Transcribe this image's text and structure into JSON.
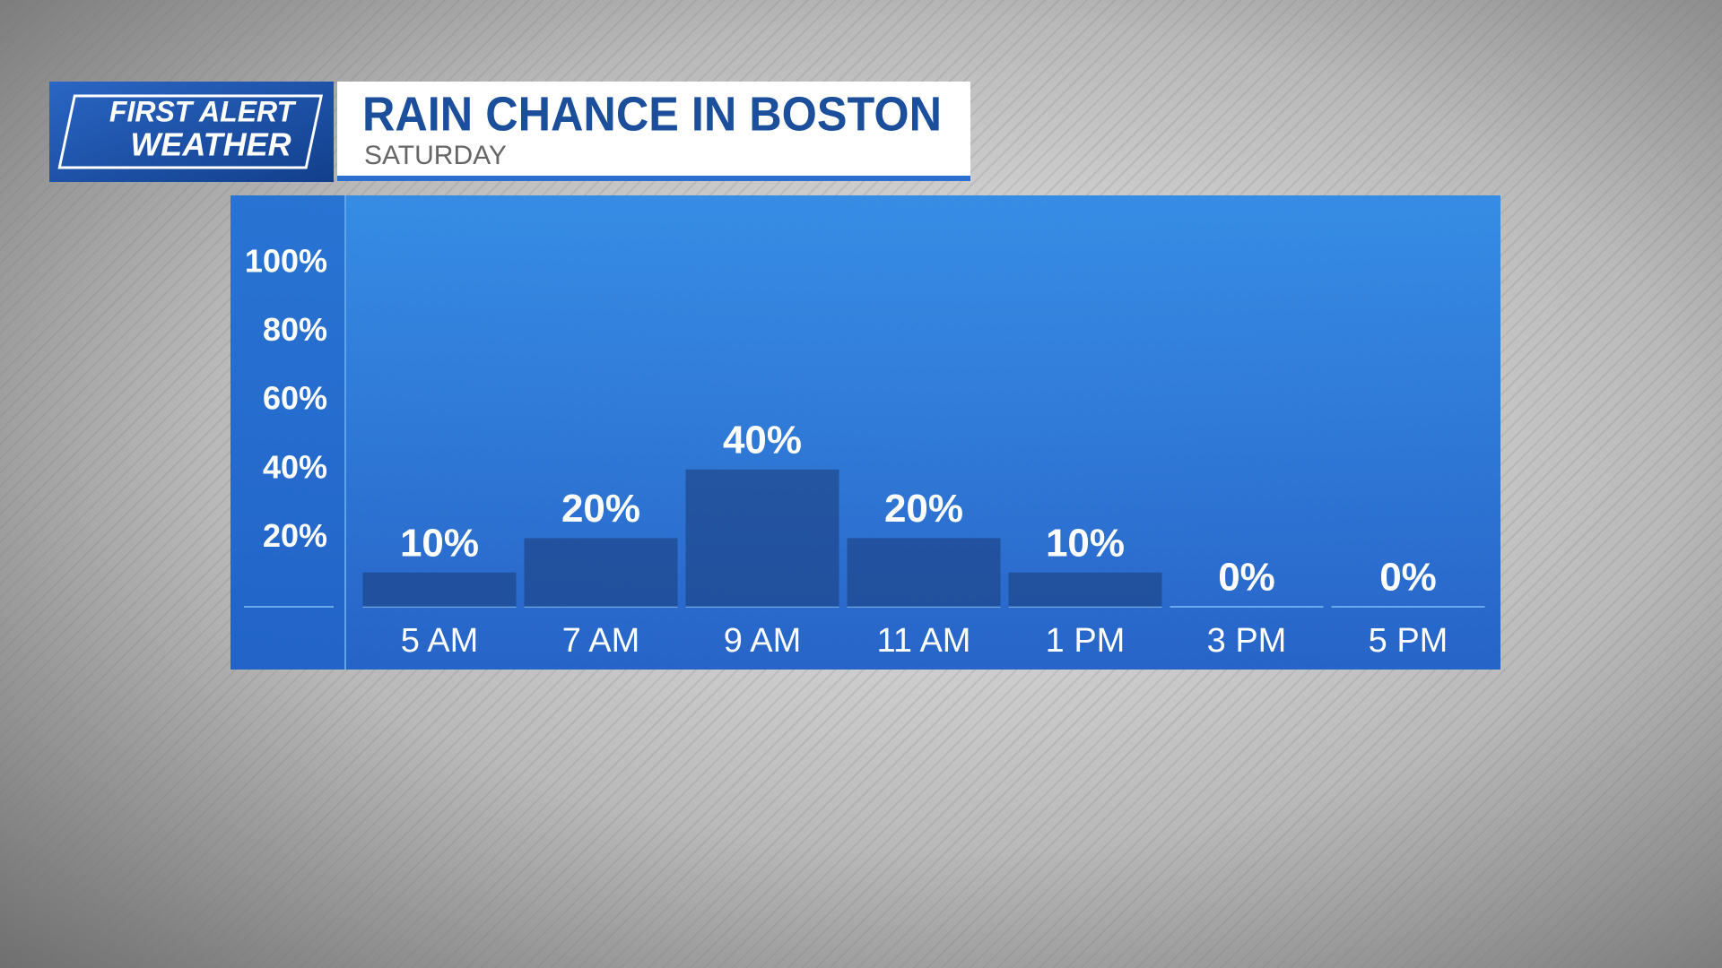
{
  "chart_data": {
    "type": "bar",
    "brand": [
      "FIRST ALERT",
      "WEATHER"
    ],
    "title": "RAIN CHANCE IN BOSTON",
    "subtitle": "SATURDAY",
    "categories": [
      "5 AM",
      "7 AM",
      "9 AM",
      "11 AM",
      "1 PM",
      "3 PM",
      "5 PM"
    ],
    "values": [
      10,
      20,
      40,
      20,
      10,
      0,
      0
    ],
    "value_labels": [
      "10%",
      "20%",
      "40%",
      "20%",
      "10%",
      "0%",
      "0%"
    ],
    "color": "#1d3f7e",
    "ylim": [
      0,
      100
    ],
    "yticks": [
      {
        "value": 20,
        "label": "20%"
      },
      {
        "value": 40,
        "label": "40%"
      },
      {
        "value": 60,
        "label": "60%"
      },
      {
        "value": 80,
        "label": "80%"
      },
      {
        "value": 100,
        "label": "100%"
      }
    ]
  }
}
